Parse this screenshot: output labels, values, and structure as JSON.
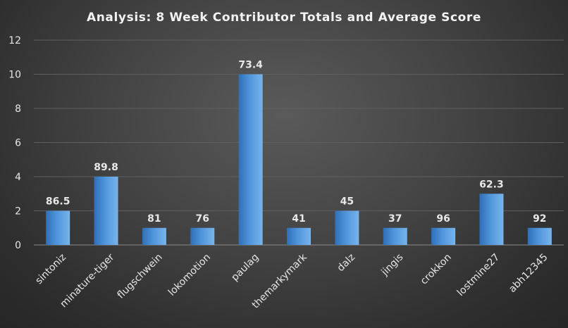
{
  "chart_data": {
    "type": "bar",
    "title": "Analysis:  8 Week Contributor Totals and Average Score",
    "xlabel": "",
    "ylabel": "",
    "categories": [
      "sintoniz",
      "minature-tiger",
      "flugschwein",
      "lokomotion",
      "paulag",
      "themarkymark",
      "dalz",
      "jingis",
      "crokkon",
      "lostmine27",
      "abh12345"
    ],
    "values": [
      2,
      4,
      1,
      1,
      10,
      1,
      2,
      1,
      1,
      3,
      1
    ],
    "data_labels": [
      "86.5",
      "89.8",
      "81",
      "76",
      "73.4",
      "41",
      "45",
      "37",
      "96",
      "62.3",
      "92"
    ],
    "ylim": [
      0,
      12
    ],
    "yticks": [
      0,
      2,
      4,
      6,
      8,
      10,
      12
    ],
    "grid": true,
    "legend": "none",
    "colors": {
      "bar_light": "#79b4ea",
      "bar_mid": "#4f95dc",
      "bar_dark": "#2f6fb7",
      "background": "#3a3a3a"
    }
  }
}
